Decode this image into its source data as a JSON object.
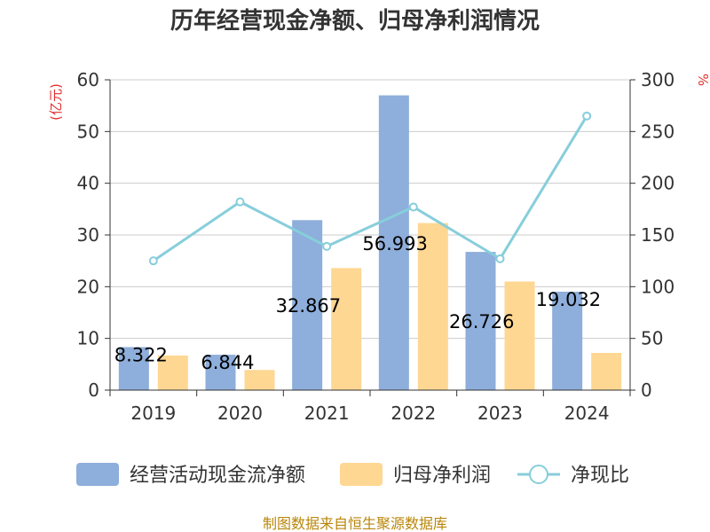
{
  "title": "历年经营现金净额、归母净利润情况",
  "source": "制图数据来自恒生聚源数据库",
  "chart_data": {
    "type": "bar",
    "categories": [
      "2019",
      "2020",
      "2021",
      "2022",
      "2023",
      "2024"
    ],
    "series": [
      {
        "name": "经营活动现金流净额",
        "type": "bar",
        "axis": "left",
        "color": "#8eaedb",
        "values": [
          8.322,
          6.844,
          32.867,
          56.993,
          26.726,
          19.032
        ]
      },
      {
        "name": "归母净利润",
        "type": "bar",
        "axis": "left",
        "color": "#fed793",
        "values": [
          6.7,
          3.9,
          23.6,
          32.3,
          21.0,
          7.2
        ]
      },
      {
        "name": "净现比",
        "type": "line",
        "axis": "right",
        "color": "#87cedb",
        "values": [
          125,
          182,
          139,
          177,
          127,
          265
        ]
      }
    ],
    "data_labels": [
      "8.322",
      "6.844",
      "32.867",
      "56.993",
      "26.726",
      "19.032"
    ],
    "left_axis": {
      "unit": "(亿元)",
      "min": 0,
      "max": 60,
      "ticks": [
        "0",
        "10",
        "20",
        "30",
        "40",
        "50",
        "60"
      ]
    },
    "right_axis": {
      "unit": "%",
      "min": 0,
      "max": 300,
      "ticks": [
        "0",
        "50",
        "100",
        "150",
        "200",
        "250",
        "300"
      ]
    },
    "grid": true,
    "legend_position": "bottom"
  }
}
